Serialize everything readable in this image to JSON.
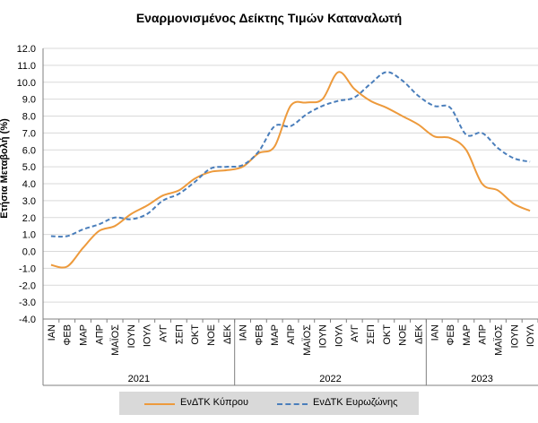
{
  "chart_data": {
    "type": "line",
    "title": "Εναρμονισμένος Δείκτης Τιμών Καταναλωτή",
    "ylabel": "Ετήσια Μεταβολή (%)",
    "ylim": [
      -4.0,
      12.0
    ],
    "yticks": [
      "12.0",
      "11.0",
      "10.0",
      "9.0",
      "8.0",
      "7.0",
      "6.0",
      "5.0",
      "4.0",
      "3.0",
      "2.0",
      "1.0",
      "0.0",
      "-1.0",
      "-2.0",
      "-3.0",
      "-4.0"
    ],
    "grid": true,
    "legend_position": "bottom",
    "categories": [
      "ΙΑΝ",
      "ΦΕΒ",
      "ΜΑΡ",
      "ΑΠΡ",
      "ΜΑΪΟΣ",
      "ΙΟΥΝ",
      "ΙΟΥΛ",
      "ΑΥΓ",
      "ΣΕΠ",
      "ΟΚΤ",
      "ΝΟΕ",
      "ΔΕΚ",
      "ΙΑΝ",
      "ΦΕΒ",
      "ΜΑΡ",
      "ΑΠΡ",
      "ΜΑΪΟΣ",
      "ΙΟΥΝ",
      "ΙΟΥΛ",
      "ΑΥΓ",
      "ΣΕΠ",
      "ΟΚΤ",
      "ΝΟΕ",
      "ΔΕΚ",
      "ΙΑΝ",
      "ΦΕΒ",
      "ΜΑΡ",
      "ΑΠΡ",
      "ΜΑΪΟΣ",
      "ΙΟΥΝ",
      "ΙΟΥΛ"
    ],
    "years": [
      {
        "label": "2021",
        "months": 12
      },
      {
        "label": "2022",
        "months": 12
      },
      {
        "label": "2023",
        "months": 7
      }
    ],
    "series": [
      {
        "name": "ΕνΔΤΚ Κύπρου",
        "color": "#ed9a3c",
        "dash": "solid",
        "values": [
          -0.8,
          -0.9,
          0.2,
          1.2,
          1.5,
          2.2,
          2.7,
          3.3,
          3.6,
          4.3,
          4.7,
          4.8,
          5.0,
          5.8,
          6.2,
          8.6,
          8.8,
          9.0,
          10.6,
          9.6,
          8.9,
          8.5,
          8.0,
          7.5,
          6.8,
          6.7,
          6.0,
          4.0,
          3.6,
          2.8,
          2.4
        ]
      },
      {
        "name": "ΕνΔΤΚ Ευρωζώνης",
        "color": "#4a7ebb",
        "dash": "dashed",
        "values": [
          0.9,
          0.9,
          1.3,
          1.6,
          2.0,
          1.9,
          2.2,
          3.0,
          3.4,
          4.1,
          4.9,
          5.0,
          5.1,
          5.9,
          7.4,
          7.4,
          8.1,
          8.6,
          8.9,
          9.1,
          9.9,
          10.6,
          10.1,
          9.2,
          8.6,
          8.5,
          6.9,
          7.0,
          6.1,
          5.5,
          5.3
        ]
      }
    ]
  }
}
